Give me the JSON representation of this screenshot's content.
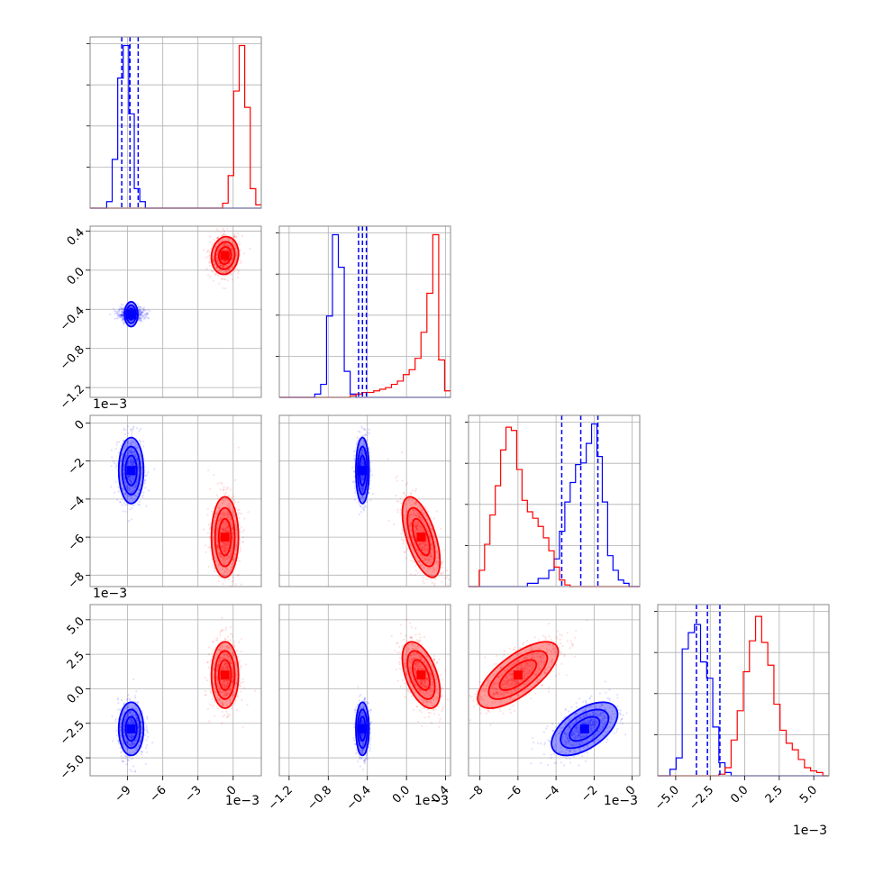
{
  "chart_data": {
    "type": "corner",
    "params": [
      {
        "id": "p0",
        "range": [
          -12.2,
          2.4
        ],
        "ticks": [
          -9,
          -6,
          -3,
          0
        ],
        "tick_labels": [
          "−9",
          "−6",
          "−3",
          "0"
        ],
        "offset": "1e−3"
      },
      {
        "id": "p1",
        "range": [
          -1.3,
          0.45
        ],
        "ticks": [
          -1.2,
          -0.8,
          -0.4,
          0.0,
          0.4
        ],
        "tick_labels": [
          "−1.2",
          "−0.8",
          "−0.4",
          "0.0",
          "0.4"
        ],
        "offset": "1e−3"
      },
      {
        "id": "p2",
        "range": [
          -8.6,
          0.4
        ],
        "ticks": [
          -8,
          -6,
          -4,
          -2,
          0
        ],
        "tick_labels": [
          "−8",
          "−6",
          "−4",
          "−2",
          "0"
        ],
        "offset": "1e−3"
      },
      {
        "id": "p3",
        "range": [
          -6.3,
          6.1
        ],
        "ticks": [
          -5.0,
          -2.5,
          0.0,
          2.5,
          5.0
        ],
        "tick_labels": [
          "−5.0",
          "−2.5",
          "0.0",
          "2.5",
          "5.0"
        ],
        "offset": "1e−3"
      }
    ],
    "colors": {
      "blue": "#0000ff",
      "red": "#ff0000",
      "grid": "#b0b0b0",
      "frame": "#888888"
    },
    "grid": true,
    "series": [
      {
        "color": "blue",
        "means": [
          -8.7,
          -0.45,
          -2.5,
          -2.9
        ],
        "sds": [
          0.55,
          0.035,
          0.9,
          1.0
        ],
        "corr": [
          [
            1,
            0,
            0,
            0
          ],
          [
            0,
            1,
            0,
            0
          ],
          [
            0,
            0,
            1,
            0.55
          ],
          [
            0,
            0,
            0.55,
            1
          ]
        ],
        "quantiles": [
          [
            -9.5,
            -8.8,
            -8.1
          ],
          [
            -0.49,
            -0.45,
            -0.41
          ],
          [
            -3.7,
            -2.7,
            -1.8
          ],
          [
            -3.5,
            -2.7,
            -1.8
          ]
        ]
      },
      {
        "color": "red",
        "means": [
          -0.7,
          0.15,
          -6.0,
          1.0
        ],
        "sds": [
          0.6,
          0.1,
          1.1,
          1.25
        ],
        "corr": [
          [
            1,
            0.1,
            0,
            0
          ],
          [
            0.1,
            1,
            -0.6,
            -0.5
          ],
          [
            0,
            -0.6,
            1,
            0.7
          ],
          [
            0,
            -0.5,
            0.7,
            1
          ]
        ],
        "quantiles": null
      }
    ],
    "diag_hist": [
      {
        "bins": [
          -12.2,
          2.4
        ],
        "blue": [
          0,
          0,
          0,
          4,
          30,
          80,
          100,
          58,
          12,
          4,
          0,
          0,
          0,
          0,
          0,
          0,
          0,
          0,
          0,
          0,
          0,
          0,
          0,
          0,
          0,
          0,
          0,
          0,
          0,
          0,
          0
        ],
        "red": [
          0,
          0,
          0,
          0,
          0,
          0,
          0,
          0,
          0,
          0,
          0,
          0,
          0,
          0,
          0,
          0,
          0,
          0,
          0,
          0,
          0,
          0,
          0,
          0,
          3,
          20,
          72,
          100,
          62,
          12,
          2
        ]
      },
      {
        "bins": [
          -1.3,
          0.45
        ],
        "blue": [
          0,
          0,
          0,
          0,
          0,
          0,
          2,
          8,
          50,
          100,
          80,
          16,
          2,
          0,
          0,
          0,
          0,
          0,
          0,
          0,
          0,
          0,
          0,
          0,
          0,
          0,
          0,
          0,
          0
        ],
        "red": [
          0,
          0,
          0,
          0,
          0,
          0,
          0,
          0,
          0,
          0,
          0,
          0,
          1,
          2,
          3,
          3,
          4,
          5,
          6,
          8,
          10,
          14,
          17,
          24,
          40,
          64,
          100,
          23,
          4
        ]
      },
      {
        "bins": [
          -8.6,
          0.4
        ],
        "blue": [
          0,
          0,
          0,
          0,
          0,
          0,
          0,
          0,
          0,
          0,
          0,
          2,
          2,
          5,
          5,
          10,
          17,
          34,
          52,
          64,
          75,
          76,
          88,
          100,
          80,
          52,
          19,
          10,
          4,
          2,
          0,
          0
        ],
        "red": [
          0,
          0,
          10,
          26,
          44,
          62,
          84,
          98,
          96,
          72,
          53,
          46,
          42,
          37,
          30,
          22,
          12,
          4,
          1,
          0,
          0,
          0,
          0,
          0,
          0,
          0,
          0,
          0,
          0,
          0,
          0,
          0
        ]
      },
      {
        "bins": [
          -6.3,
          6.1
        ],
        "blue": [
          0,
          0,
          4,
          11,
          78,
          88,
          93,
          70,
          60,
          30,
          8,
          2,
          0,
          0,
          0,
          0,
          0,
          0,
          0,
          0,
          0,
          0,
          0,
          0,
          0,
          0,
          0,
          0
        ],
        "red": [
          0,
          0,
          0,
          0,
          0,
          0,
          0,
          0,
          0,
          0,
          1,
          5,
          22,
          40,
          64,
          83,
          98,
          82,
          68,
          44,
          28,
          20,
          16,
          10,
          5,
          3,
          2,
          0
        ]
      }
    ]
  }
}
